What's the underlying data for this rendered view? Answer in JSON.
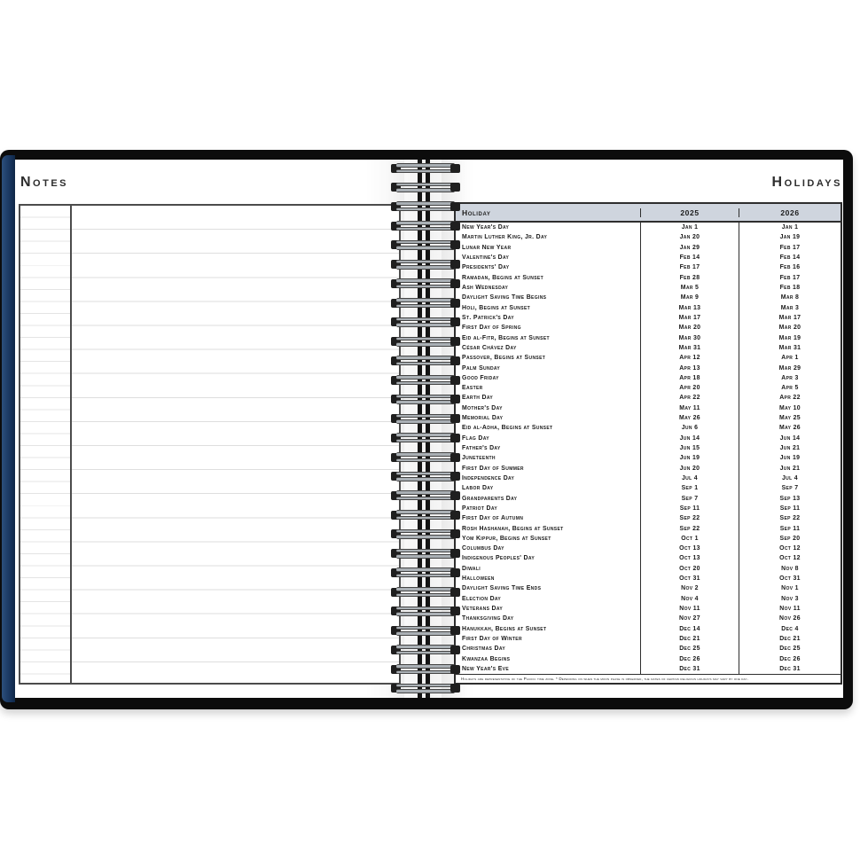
{
  "left_page": {
    "title": "Notes"
  },
  "right_page": {
    "title": "Holidays",
    "table": {
      "columns": [
        "Holiday",
        "2025",
        "2026"
      ],
      "rows": [
        {
          "name": "New Year's Day",
          "y2025": "Jan 1",
          "y2026": "Jan 1"
        },
        {
          "name": "Martin Luther King, Jr. Day",
          "y2025": "Jan 20",
          "y2026": "Jan 19"
        },
        {
          "name": "Lunar New Year",
          "y2025": "Jan 29",
          "y2026": "Feb 17"
        },
        {
          "name": "Valentine's Day",
          "y2025": "Feb 14",
          "y2026": "Feb 14"
        },
        {
          "name": "Presidents' Day",
          "y2025": "Feb 17",
          "y2026": "Feb 16"
        },
        {
          "name": "Ramadan, Begins at Sunset",
          "y2025": "Feb 28",
          "y2026": "Feb 17"
        },
        {
          "name": "Ash Wednesday",
          "y2025": "Mar 5",
          "y2026": "Feb 18"
        },
        {
          "name": "Daylight Saving Time Begins",
          "y2025": "Mar 9",
          "y2026": "Mar 8"
        },
        {
          "name": "Holi, Begins at Sunset",
          "y2025": "Mar 13",
          "y2026": "Mar 3"
        },
        {
          "name": "St. Patrick's Day",
          "y2025": "Mar 17",
          "y2026": "Mar 17"
        },
        {
          "name": "First Day of Spring",
          "y2025": "Mar 20",
          "y2026": "Mar 20"
        },
        {
          "name": "Eid al-Fitr, Begins at Sunset",
          "y2025": "Mar 30",
          "y2026": "Mar 19"
        },
        {
          "name": "César Chávez Day",
          "y2025": "Mar 31",
          "y2026": "Mar 31"
        },
        {
          "name": "Passover, Begins at Sunset",
          "y2025": "Apr 12",
          "y2026": "Apr 1"
        },
        {
          "name": "Palm Sunday",
          "y2025": "Apr 13",
          "y2026": "Mar 29"
        },
        {
          "name": "Good Friday",
          "y2025": "Apr 18",
          "y2026": "Apr 3"
        },
        {
          "name": "Easter",
          "y2025": "Apr 20",
          "y2026": "Apr 5"
        },
        {
          "name": "Earth Day",
          "y2025": "Apr 22",
          "y2026": "Apr 22"
        },
        {
          "name": "Mother's Day",
          "y2025": "May 11",
          "y2026": "May 10"
        },
        {
          "name": "Memorial Day",
          "y2025": "May 26",
          "y2026": "May 25"
        },
        {
          "name": "Eid al-Adha, Begins at Sunset",
          "y2025": "Jun 6",
          "y2026": "May 26"
        },
        {
          "name": "Flag Day",
          "y2025": "Jun 14",
          "y2026": "Jun 14"
        },
        {
          "name": "Father's Day",
          "y2025": "Jun 15",
          "y2026": "Jun 21"
        },
        {
          "name": "Juneteenth",
          "y2025": "Jun 19",
          "y2026": "Jun 19"
        },
        {
          "name": "First Day of Summer",
          "y2025": "Jun 20",
          "y2026": "Jun 21"
        },
        {
          "name": "Independence Day",
          "y2025": "Jul 4",
          "y2026": "Jul 4"
        },
        {
          "name": "Labor Day",
          "y2025": "Sep 1",
          "y2026": "Sep 7"
        },
        {
          "name": "Grandparents Day",
          "y2025": "Sep 7",
          "y2026": "Sep 13"
        },
        {
          "name": "Patriot Day",
          "y2025": "Sep 11",
          "y2026": "Sep 11"
        },
        {
          "name": "First Day of Autumn",
          "y2025": "Sep 22",
          "y2026": "Sep 22"
        },
        {
          "name": "Rosh Hashanah, Begins at Sunset",
          "y2025": "Sep 22",
          "y2026": "Sep 11"
        },
        {
          "name": "Yom Kippur, Begins at Sunset",
          "y2025": "Oct 1",
          "y2026": "Sep 20"
        },
        {
          "name": "Columbus Day",
          "y2025": "Oct 13",
          "y2026": "Oct 12"
        },
        {
          "name": "Indigenous Peoples' Day",
          "y2025": "Oct 13",
          "y2026": "Oct 12"
        },
        {
          "name": "Diwali",
          "y2025": "Oct 20",
          "y2026": "Nov 8"
        },
        {
          "name": "Halloween",
          "y2025": "Oct 31",
          "y2026": "Oct 31"
        },
        {
          "name": "Daylight Saving Time Ends",
          "y2025": "Nov 2",
          "y2026": "Nov 1"
        },
        {
          "name": "Election Day",
          "y2025": "Nov 4",
          "y2026": "Nov 3"
        },
        {
          "name": "Veterans Day",
          "y2025": "Nov 11",
          "y2026": "Nov 11"
        },
        {
          "name": "Thanksgiving Day",
          "y2025": "Nov 27",
          "y2026": "Nov 26"
        },
        {
          "name": "Hanukkah, Begins at Sunset",
          "y2025": "Dec 14",
          "y2026": "Dec 4"
        },
        {
          "name": "First Day of Winter",
          "y2025": "Dec 21",
          "y2026": "Dec 21"
        },
        {
          "name": "Christmas Day",
          "y2025": "Dec 25",
          "y2026": "Dec 25"
        },
        {
          "name": "Kwanzaa Begins",
          "y2025": "Dec 26",
          "y2026": "Dec 26"
        },
        {
          "name": "New Year's Eve",
          "y2025": "Dec 31",
          "y2026": "Dec 31"
        }
      ],
      "footnote": "Holidays are representative of the Pacific time zone.  *  Depending on when the moon phase is observed, the dates of certain religious holidays may vary by one day."
    }
  },
  "colors": {
    "cover_black": "#0c0c0c",
    "spine_navy": "#16325a",
    "table_header_bg": "#cfd5de",
    "table_border": "#2e2e2e",
    "rule_line_major": "#dedede",
    "rule_line_minor": "#e4e4e4"
  }
}
